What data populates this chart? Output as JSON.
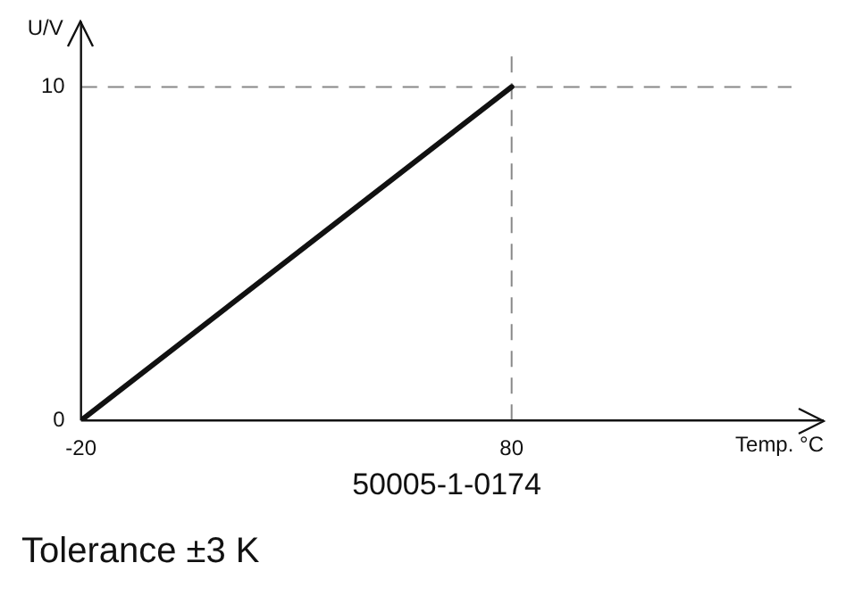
{
  "chart_data": {
    "type": "line",
    "xlabel": "Temp. °C",
    "ylabel": "U/V",
    "annotations": [
      "50005-1-0174",
      "Tolerance ±3 K"
    ],
    "x": [
      -20,
      80
    ],
    "values": [
      0,
      10
    ],
    "color": "#111111",
    "xlim": [
      -20,
      145
    ],
    "ylim": [
      0,
      11
    ],
    "xticks": [
      -20,
      80
    ],
    "yticks": [
      0,
      10
    ],
    "ref_lines": [
      {
        "axis": "x",
        "value": 80,
        "color": "#888888",
        "line_style": "dashed"
      },
      {
        "axis": "y",
        "value": 10,
        "color": "#888888",
        "line_style": "dashed"
      }
    ],
    "marker": "none",
    "line_style": "solid"
  }
}
